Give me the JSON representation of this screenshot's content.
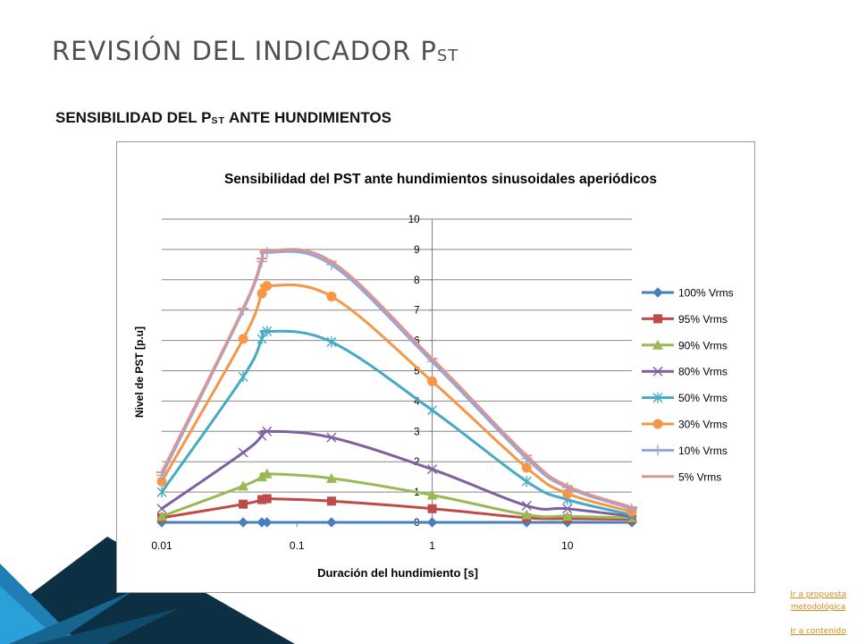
{
  "page": {
    "title_main": "REVISIÓN DEL INDICADOR P",
    "title_sub": "ST",
    "subtitle_main": "SENSIBILIDAD DEL P",
    "subtitle_sub": "ST",
    "subtitle_rest": " ANTE HUNDIMIENTOS",
    "links": [
      "Ir a propuesta metodológica",
      "Ir a contenido"
    ]
  },
  "chart_data": {
    "type": "scatter",
    "title": "Sensibilidad del PST ante hundimientos sinusoidales aperiódicos",
    "xlabel": "Duración del hundimiento [s]",
    "ylabel": "Nivel de PST [p.u]",
    "x_scale": "log",
    "xlim": [
      0.01,
      30
    ],
    "ylim": [
      0,
      10
    ],
    "x_tick_labels": [
      "0.01",
      "0.1",
      "1",
      "10"
    ],
    "y_tick_labels": [
      "0",
      "1",
      "2",
      "3",
      "4",
      "5",
      "6",
      "7",
      "8",
      "9",
      "10"
    ],
    "grid": true,
    "legend_position": "right",
    "x": [
      0.01,
      0.04,
      0.055,
      0.06,
      0.18,
      1,
      5,
      10,
      30
    ],
    "series": [
      {
        "name": "100% Vrms",
        "color": "#4a7ebb",
        "marker": "diamond",
        "values": [
          0,
          0,
          0,
          0,
          0,
          0,
          0,
          0,
          0
        ]
      },
      {
        "name": "95% Vrms",
        "color": "#be4b48",
        "marker": "square",
        "values": [
          0.15,
          0.6,
          0.75,
          0.78,
          0.7,
          0.45,
          0.15,
          0.12,
          0.1
        ]
      },
      {
        "name": "90% Vrms",
        "color": "#98b954",
        "marker": "triangle",
        "values": [
          0.2,
          1.2,
          1.5,
          1.6,
          1.45,
          0.9,
          0.25,
          0.2,
          0.15
        ]
      },
      {
        "name": "80% Vrms",
        "color": "#7d60a0",
        "marker": "x",
        "values": [
          0.45,
          2.3,
          2.85,
          3.0,
          2.8,
          1.75,
          0.55,
          0.45,
          0.2
        ]
      },
      {
        "name": "50% Vrms",
        "color": "#46aac5",
        "marker": "star",
        "values": [
          1.0,
          4.8,
          6.05,
          6.3,
          5.95,
          3.7,
          1.35,
          0.75,
          0.25
        ]
      },
      {
        "name": "30% Vrms",
        "color": "#f79646",
        "marker": "circle",
        "values": [
          1.35,
          6.05,
          7.55,
          7.8,
          7.45,
          4.65,
          1.8,
          0.95,
          0.35
        ]
      },
      {
        "name": "10% Vrms",
        "color": "#8fa8d8",
        "marker": "plus",
        "values": [
          1.55,
          7.0,
          8.6,
          8.9,
          8.5,
          5.3,
          2.1,
          1.15,
          0.45
        ]
      },
      {
        "name": "5% Vrms",
        "color": "#d99694",
        "marker": "dash",
        "values": [
          1.65,
          7.05,
          8.7,
          8.95,
          8.6,
          5.4,
          2.2,
          1.2,
          0.5
        ]
      }
    ]
  }
}
